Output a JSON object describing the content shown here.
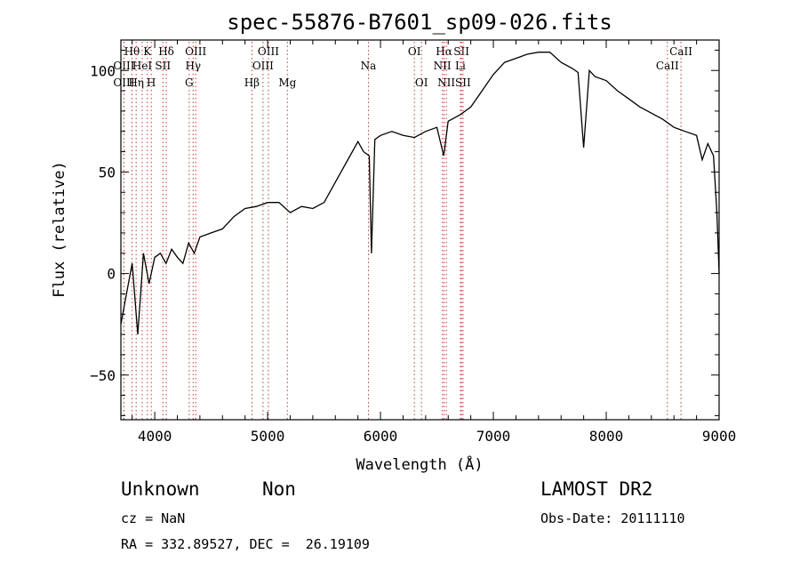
{
  "chart_data": {
    "type": "line",
    "title": "spec-55876-B7601_sp09-026.fits",
    "xlabel": "Wavelength (Å)",
    "ylabel": "Flux (relative)",
    "xlim": [
      3700,
      9000
    ],
    "ylim": [
      -72,
      115
    ],
    "x_ticks": [
      4000,
      5000,
      6000,
      7000,
      8000,
      9000
    ],
    "y_ticks": [
      -50,
      0,
      50,
      100
    ],
    "grid": false,
    "line_color": "#000000",
    "marker_color": "#cc3333",
    "series": [
      {
        "x": [
          3700,
          3750,
          3800,
          3850,
          3900,
          3950,
          4000,
          4050,
          4100,
          4150,
          4200,
          4250,
          4300,
          4350,
          4400,
          4500,
          4600,
          4700,
          4800,
          4900,
          5000,
          5100,
          5200,
          5300,
          5400,
          5500,
          5600,
          5700,
          5800,
          5850,
          5900,
          5920,
          5950,
          6000,
          6100,
          6200,
          6300,
          6400,
          6500,
          6560,
          6600,
          6700,
          6800,
          6900,
          7000,
          7100,
          7200,
          7300,
          7400,
          7500,
          7600,
          7700,
          7750,
          7800,
          7850,
          7900,
          8000,
          8100,
          8200,
          8300,
          8400,
          8500,
          8600,
          8700,
          8800,
          8850,
          8900,
          8950,
          8980,
          9000
        ],
        "y": [
          -25,
          -10,
          5,
          -30,
          10,
          -5,
          8,
          10,
          5,
          12,
          8,
          5,
          15,
          10,
          18,
          20,
          22,
          28,
          32,
          33,
          35,
          35,
          30,
          33,
          32,
          35,
          45,
          55,
          65,
          60,
          58,
          10,
          66,
          68,
          70,
          68,
          67,
          70,
          72,
          58,
          75,
          78,
          82,
          90,
          98,
          104,
          106,
          108,
          109,
          109,
          104,
          101,
          99,
          62,
          100,
          97,
          95,
          90,
          86,
          82,
          79,
          76,
          72,
          70,
          68,
          56,
          64,
          58,
          30,
          0
        ]
      }
    ],
    "spectral_lines": [
      {
        "label": "Hθ",
        "wavelength": 3798,
        "row": 1
      },
      {
        "label": "K",
        "wavelength": 3934,
        "row": 1
      },
      {
        "label": "Hδ",
        "wavelength": 4102,
        "row": 1
      },
      {
        "label": "OIII",
        "wavelength": 4363,
        "row": 1
      },
      {
        "label": "OIII",
        "wavelength": 5007,
        "row": 1
      },
      {
        "label": "OI",
        "wavelength": 6300,
        "row": 1
      },
      {
        "label": "Hα",
        "wavelength": 6563,
        "row": 1
      },
      {
        "label": "SII",
        "wavelength": 6717,
        "row": 1
      },
      {
        "label": "CaII",
        "wavelength": 8662,
        "row": 1
      },
      {
        "label": "OIII",
        "wavelength": 3727,
        "row": 2
      },
      {
        "label": "HeI",
        "wavelength": 3889,
        "row": 2
      },
      {
        "label": "SII",
        "wavelength": 4072,
        "row": 2
      },
      {
        "label": "Hγ",
        "wavelength": 4340,
        "row": 2
      },
      {
        "label": "OIII",
        "wavelength": 4959,
        "row": 2
      },
      {
        "label": "Na",
        "wavelength": 5893,
        "row": 2
      },
      {
        "label": "NII",
        "wavelength": 6548,
        "row": 2
      },
      {
        "label": "Li",
        "wavelength": 6708,
        "row": 2
      },
      {
        "label": "CaII",
        "wavelength": 8542,
        "row": 2
      },
      {
        "label": "OIII",
        "wavelength": 3727,
        "row": 3
      },
      {
        "label": "Hη",
        "wavelength": 3835,
        "row": 3
      },
      {
        "label": "H",
        "wavelength": 3969,
        "row": 3
      },
      {
        "label": "G",
        "wavelength": 4305,
        "row": 3
      },
      {
        "label": "Hβ",
        "wavelength": 4861,
        "row": 3
      },
      {
        "label": "Mg",
        "wavelength": 5175,
        "row": 3
      },
      {
        "label": "OI",
        "wavelength": 6363,
        "row": 3
      },
      {
        "label": "NII",
        "wavelength": 6583,
        "row": 3
      },
      {
        "label": "SII",
        "wavelength": 6731,
        "row": 3
      }
    ]
  },
  "info": {
    "class": "Unknown",
    "subclass": "Non",
    "survey": "LAMOST DR2",
    "cz": "cz = NaN",
    "obs_date": "Obs-Date: 20111110",
    "coords": "RA = 332.89527, DEC =  26.19109"
  }
}
